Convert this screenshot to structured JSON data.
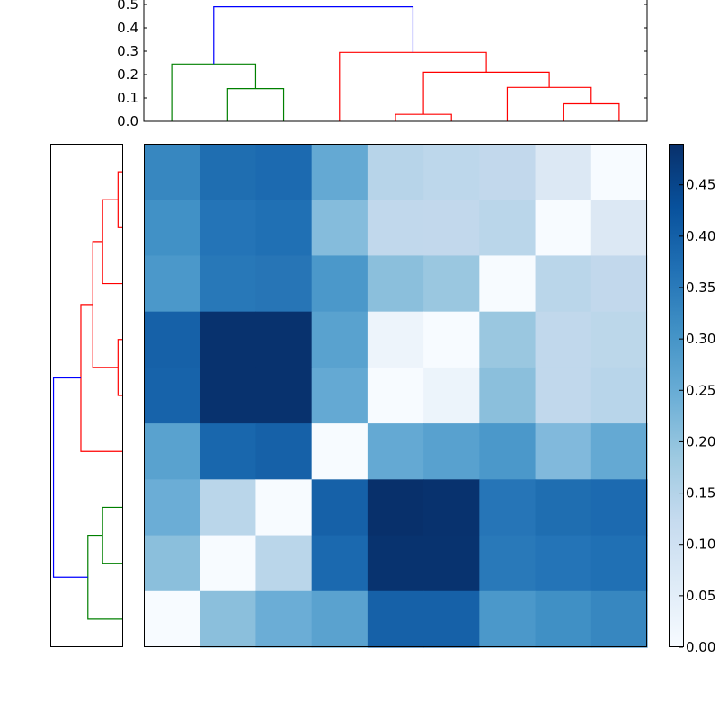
{
  "chart_data": {
    "type": "heatmap",
    "title": "",
    "description": "Clustered heatmap with top and left dendrograms (hierarchical clustering) and a Blues colorbar",
    "heatmap": {
      "rows": 9,
      "cols": 9,
      "colormap": "Blues",
      "vmin": 0.0,
      "vmax": 0.49,
      "values": [
        [
          0.31,
          0.37,
          0.38,
          0.25,
          0.13,
          0.12,
          0.11,
          0.05,
          0.0
        ],
        [
          0.29,
          0.36,
          0.37,
          0.2,
          0.11,
          0.11,
          0.12,
          0.0,
          0.05
        ],
        [
          0.27,
          0.35,
          0.355,
          0.27,
          0.19,
          0.17,
          0.0,
          0.12,
          0.11
        ],
        [
          0.41,
          0.48,
          0.48,
          0.24,
          0.03,
          0.0,
          0.17,
          0.11,
          0.12
        ],
        [
          0.405,
          0.48,
          0.48,
          0.25,
          0.0,
          0.03,
          0.19,
          0.11,
          0.125
        ],
        [
          0.24,
          0.39,
          0.41,
          0.0,
          0.25,
          0.24,
          0.27,
          0.2,
          0.25
        ],
        [
          0.23,
          0.12,
          0.0,
          0.41,
          0.49,
          0.48,
          0.355,
          0.37,
          0.38
        ],
        [
          0.19,
          0.0,
          0.12,
          0.39,
          0.475,
          0.475,
          0.345,
          0.36,
          0.37
        ],
        [
          0.0,
          0.19,
          0.23,
          0.24,
          0.41,
          0.41,
          0.27,
          0.29,
          0.31
        ]
      ],
      "colors": [
        [
          "#3787c0",
          "#1f6eb1",
          "#1c6ab0",
          "#64a9d3",
          "#b7d4e9",
          "#bdd7eb",
          "#c2d8ec",
          "#dce8f4",
          "#f7fbff"
        ],
        [
          "#4191c6",
          "#2474b7",
          "#2070b4",
          "#85bcdc",
          "#c1d8ec",
          "#c2d8ec",
          "#bad6ea",
          "#f7fbff",
          "#dce8f4"
        ],
        [
          "#4b98ca",
          "#2878b8",
          "#2775b6",
          "#4b98ca",
          "#8bbfdc",
          "#9ac7e0",
          "#f7fbff",
          "#bad6ea",
          "#c2d8ec"
        ],
        [
          "#1661a8",
          "#08326e",
          "#08326e",
          "#59a2cf",
          "#edf4fb",
          "#f7fbff",
          "#9ac7e0",
          "#c1d8ec",
          "#bcd7ea"
        ],
        [
          "#1763aa",
          "#08326e",
          "#08326e",
          "#64a9d3",
          "#f7fbff",
          "#ecf4fb",
          "#8bbfdc",
          "#c1d8ec",
          "#b8d5ea"
        ],
        [
          "#59a2cf",
          "#1967ad",
          "#1661a8",
          "#f7fbff",
          "#64a9d3",
          "#58a1cf",
          "#4b98ca",
          "#81b9dc",
          "#64a9d3"
        ],
        [
          "#6badd6",
          "#bad6ea",
          "#f7fbff",
          "#1661a8",
          "#08306b",
          "#08326e",
          "#2675b7",
          "#1f6eb1",
          "#1c6ab0"
        ],
        [
          "#8bbfdc",
          "#f7fbff",
          "#bad6ea",
          "#1b69af",
          "#08336f",
          "#08336f",
          "#2979b9",
          "#2474b7",
          "#2070b4"
        ],
        [
          "#f7fbff",
          "#8bbfdc",
          "#6badd6",
          "#5aa2cf",
          "#1661a8",
          "#1661a8",
          "#4b98ca",
          "#4090c5",
          "#3787c0"
        ]
      ]
    },
    "top_dendrogram": {
      "ylabel": "",
      "ylim": [
        0.0,
        0.5
      ],
      "yticks": [
        "0.0",
        "0.1",
        "0.2",
        "0.3",
        "0.4",
        "0.5"
      ],
      "links": [
        {
          "left_leaf_pos": 1,
          "right_leaf_pos": 2,
          "left_h": 0.0,
          "right_h": 0.0,
          "height": 0.14,
          "color": "#008000"
        },
        {
          "left_leaf_pos": 0,
          "right_leaf_pos": 1.5,
          "left_h": 0.0,
          "right_h": 0.14,
          "height": 0.245,
          "color": "#008000"
        },
        {
          "left_leaf_pos": 4,
          "right_leaf_pos": 5,
          "left_h": 0.0,
          "right_h": 0.0,
          "height": 0.03,
          "color": "#ff0000"
        },
        {
          "left_leaf_pos": 7,
          "right_leaf_pos": 8,
          "left_h": 0.0,
          "right_h": 0.0,
          "height": 0.075,
          "color": "#ff0000"
        },
        {
          "left_leaf_pos": 6,
          "right_leaf_pos": 7.5,
          "left_h": 0.0,
          "right_h": 0.075,
          "height": 0.145,
          "color": "#ff0000"
        },
        {
          "left_leaf_pos": 4.5,
          "right_leaf_pos": 6.75,
          "left_h": 0.03,
          "right_h": 0.145,
          "height": 0.21,
          "color": "#ff0000"
        },
        {
          "left_leaf_pos": 3,
          "right_leaf_pos": 5.625,
          "left_h": 0.0,
          "right_h": 0.21,
          "height": 0.295,
          "color": "#ff0000"
        },
        {
          "left_leaf_pos": 0.75,
          "right_leaf_pos": 4.3125,
          "left_h": 0.245,
          "right_h": 0.295,
          "height": 0.49,
          "color": "#0000ff"
        }
      ]
    },
    "left_dendrogram": {
      "orientation": "left",
      "links": [
        {
          "a": 0,
          "b": 1,
          "a_h": 0.0,
          "b_h": 0.0,
          "height": 0.03,
          "color": "#ff0000"
        },
        {
          "a": 0.5,
          "b": 2,
          "a_h": 0.03,
          "b_h": 0.0,
          "height": 0.14,
          "color": "#ff0000"
        },
        {
          "a": 3,
          "b": 4,
          "a_h": 0.0,
          "b_h": 0.0,
          "height": 0.03,
          "color": "#ff0000"
        },
        {
          "a": 1.25,
          "b": 3.5,
          "a_h": 0.14,
          "b_h": 0.03,
          "height": 0.21,
          "color": "#ff0000"
        },
        {
          "a": 2.375,
          "b": 5,
          "a_h": 0.21,
          "b_h": 0.0,
          "height": 0.295,
          "color": "#ff0000"
        },
        {
          "a": 6,
          "b": 7,
          "a_h": 0.0,
          "b_h": 0.0,
          "height": 0.14,
          "color": "#008000"
        },
        {
          "a": 6.5,
          "b": 8,
          "a_h": 0.14,
          "b_h": 0.0,
          "height": 0.245,
          "color": "#008000"
        },
        {
          "a": 3.6875,
          "b": 7.25,
          "a_h": 0.295,
          "b_h": 0.245,
          "height": 0.49,
          "color": "#0000ff"
        }
      ]
    },
    "colorbar": {
      "vmin": 0.0,
      "vmax": 0.49,
      "ticks": [
        0.0,
        0.05,
        0.1,
        0.15,
        0.2,
        0.25,
        0.3,
        0.35,
        0.4,
        0.45
      ],
      "tick_labels": [
        "0.00",
        "0.05",
        "0.10",
        "0.15",
        "0.20",
        "0.25",
        "0.30",
        "0.35",
        "0.40",
        "0.45"
      ],
      "colormap": "Blues"
    }
  }
}
